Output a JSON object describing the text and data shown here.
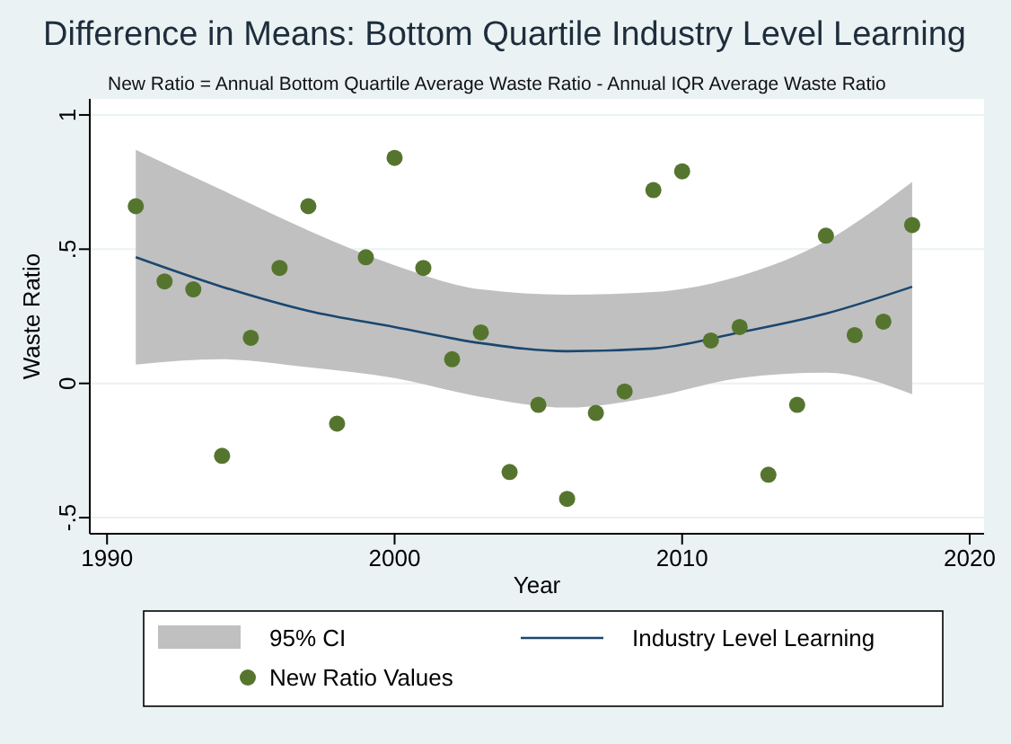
{
  "chart_data": {
    "type": "scatter",
    "title": "Difference in Means: Bottom Quartile Industry Level Learning",
    "subtitle": "New Ratio = Annual Bottom Quartile Average Waste Ratio - Annual IQR Average Waste Ratio",
    "xlabel": "Year",
    "ylabel": "Waste Ratio",
    "xlim": [
      1989.4,
      2020.5
    ],
    "xticks": [
      1990,
      2000,
      2010,
      2020
    ],
    "ylim": [
      -0.56,
      1.06
    ],
    "yticks": [
      {
        "value": -0.5,
        "label": "-.5"
      },
      0,
      {
        "value": 0.5,
        "label": ".5"
      },
      1
    ],
    "grid": "y",
    "legend": "bottom",
    "annotations": [
      "95% CI"
    ],
    "series": [
      {
        "type": "line",
        "name": "Industry Level Learning",
        "color": "#1a476f",
        "x": [
          1991,
          1994,
          1997,
          2000,
          2003,
          2006,
          2009,
          2012,
          2015,
          2018
        ],
        "values": [
          0.47,
          0.36,
          0.27,
          0.21,
          0.15,
          0.12,
          0.13,
          0.19,
          0.26,
          0.36
        ],
        "lower": [
          0.07,
          0.09,
          0.06,
          0.02,
          -0.05,
          -0.09,
          -0.05,
          0.02,
          0.04,
          -0.04
        ],
        "upper": [
          0.87,
          0.72,
          0.57,
          0.44,
          0.35,
          0.33,
          0.34,
          0.4,
          0.53,
          0.75
        ]
      },
      {
        "name": "New Ratio Values",
        "color": "#55752f",
        "marker": "circle",
        "x": [
          1991,
          1992,
          1993,
          1994,
          1995,
          1996,
          1997,
          1998,
          1999,
          2000,
          2001,
          2002,
          2003,
          2004,
          2005,
          2006,
          2007,
          2008,
          2009,
          2010,
          2011,
          2012,
          2013,
          2014,
          2015,
          2016,
          2017,
          2018
        ],
        "values": [
          0.66,
          0.38,
          0.35,
          -0.27,
          0.17,
          0.43,
          0.66,
          -0.15,
          0.47,
          0.84,
          0.43,
          0.09,
          0.19,
          -0.33,
          -0.08,
          -0.43,
          -0.11,
          -0.03,
          0.72,
          0.79,
          0.16,
          0.21,
          -0.34,
          -0.08,
          0.55,
          0.18,
          0.23,
          0.59
        ]
      }
    ]
  }
}
